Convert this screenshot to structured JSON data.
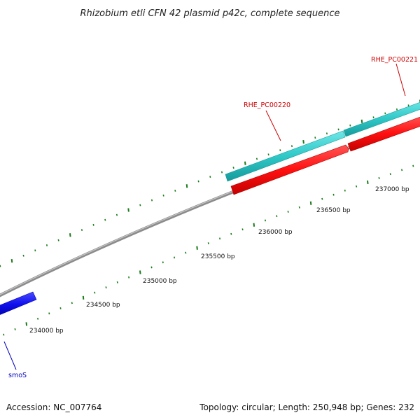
{
  "title": "Rhizobium etli CFN 42 plasmid p42c, complete sequence",
  "colors": {
    "backbone": "#8c8c8c",
    "tick": "#1a7a1a",
    "forward_gene": "#30c8c8",
    "reverse_gene": "#ff1010",
    "other_gene": "#1010ee",
    "red_label": "#cc0000",
    "blue_label": "#0000bb"
  },
  "ruler": {
    "labels": [
      {
        "text": "234000 bp"
      },
      {
        "text": "234500 bp"
      },
      {
        "text": "235000 bp"
      },
      {
        "text": "235500 bp"
      },
      {
        "text": "236000 bp"
      },
      {
        "text": "236500 bp"
      },
      {
        "text": "237000 bp"
      }
    ]
  },
  "genes": [
    {
      "label": "RHE_PC00220",
      "strand": "forward"
    },
    {
      "label": "RHE_PC00221",
      "strand": "forward"
    },
    {
      "label": "smoS",
      "strand": "reverse"
    }
  ],
  "footer": {
    "accession": "Accession: NC_007764",
    "summary": "Topology: circular; Length: 250,948 bp; Genes: 232"
  }
}
